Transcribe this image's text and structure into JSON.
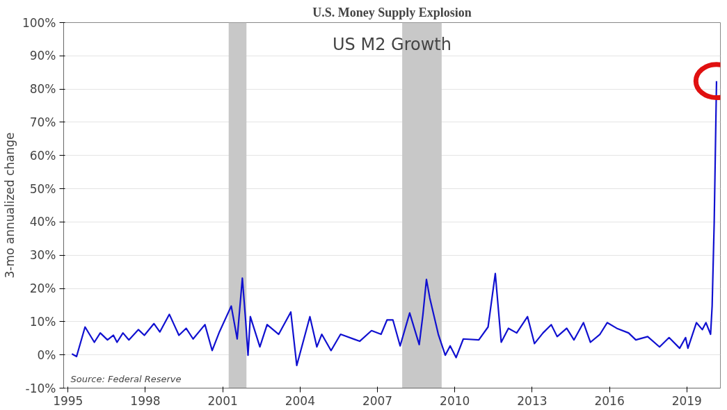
{
  "chart_data": {
    "type": "line",
    "title": "U.S. Money Supply Explosion",
    "ylabel": "3-mo annualized change",
    "annotations": [
      "US M2 Growth",
      "Source: Federal Reserve"
    ],
    "x": [
      1995.15,
      1995.33,
      1995.66,
      1996.02,
      1996.25,
      1996.53,
      1996.76,
      1996.9,
      1997.13,
      1997.36,
      1997.73,
      1997.96,
      1998.33,
      1998.56,
      1998.93,
      1999.3,
      1999.58,
      1999.85,
      2000.31,
      2000.59,
      2000.87,
      2001.33,
      2001.56,
      2001.76,
      2001.88,
      2001.98,
      2002.07,
      2002.44,
      2002.72,
      2003.17,
      2003.64,
      2003.87,
      2004.38,
      2004.65,
      2004.84,
      2005.2,
      2005.57,
      2006.31,
      2006.77,
      2007.14,
      2007.37,
      2007.6,
      2007.88,
      2008.25,
      2008.62,
      2008.76,
      2008.9,
      2009.03,
      2009.36,
      2009.63,
      2009.82,
      2010.05,
      2010.33,
      2010.93,
      2011.29,
      2011.57,
      2011.8,
      2012.08,
      2012.4,
      2012.82,
      2013.09,
      2013.42,
      2013.74,
      2013.97,
      2014.34,
      2014.62,
      2014.99,
      2015.26,
      2015.63,
      2015.91,
      2016.28,
      2016.74,
      2017.02,
      2017.48,
      2017.94,
      2018.31,
      2018.72,
      2018.95,
      2019.04,
      2019.37,
      2019.6,
      2019.74,
      2019.92,
      2019.98,
      2020.06,
      2020.15
    ],
    "series": [
      {
        "color": "#1010d0",
        "values": [
          0.3,
          -0.5,
          8.4,
          3.8,
          6.6,
          4.5,
          5.9,
          3.8,
          6.6,
          4.5,
          7.6,
          5.9,
          9.4,
          6.9,
          12.2,
          5.9,
          8.0,
          4.8,
          9.1,
          1.3,
          6.9,
          14.7,
          4.8,
          23.1,
          11.2,
          -0.1,
          11.5,
          2.4,
          9.1,
          6.2,
          12.9,
          -3.2,
          11.5,
          2.4,
          6.2,
          1.3,
          6.2,
          4.1,
          7.3,
          6.2,
          10.5,
          10.5,
          2.7,
          12.6,
          3.1,
          11.9,
          22.7,
          17.1,
          6.2,
          -0.1,
          2.7,
          -0.8,
          4.8,
          4.5,
          8.4,
          24.5,
          3.8,
          8.0,
          6.6,
          11.5,
          3.4,
          6.6,
          9.1,
          5.5,
          8.0,
          4.5,
          9.7,
          3.8,
          6.2,
          9.7,
          8.0,
          6.6,
          4.5,
          5.5,
          2.4,
          5.2,
          2.0,
          5.2,
          2.0,
          9.7,
          7.6,
          9.7,
          6.2,
          14.7,
          39.9,
          82.4
        ]
      }
    ],
    "xlim": [
      1994.83,
      2020.3
    ],
    "ylim": [
      -10,
      100
    ],
    "xticks": [
      1995,
      1998,
      2001,
      2004,
      2007,
      2010,
      2013,
      2016,
      2019
    ],
    "yticks": [
      {
        "value": -10,
        "label": "-10%"
      },
      {
        "value": 0,
        "label": "0%"
      },
      {
        "value": 10,
        "label": "10%"
      },
      {
        "value": 20,
        "label": "20%"
      },
      {
        "value": 30,
        "label": "30%"
      },
      {
        "value": 40,
        "label": "40%"
      },
      {
        "value": 50,
        "label": "50%"
      },
      {
        "value": 60,
        "label": "60%"
      },
      {
        "value": 70,
        "label": "70%"
      },
      {
        "value": 80,
        "label": "80%"
      },
      {
        "value": 90,
        "label": "90%"
      },
      {
        "value": 100,
        "label": "100%"
      }
    ],
    "bands": [
      {
        "axis": "x",
        "from": 2001.23,
        "to": 2001.92,
        "color": "#c8c8c8"
      },
      {
        "axis": "x",
        "from": 2007.96,
        "to": 2009.49,
        "color": "#c8c8c8"
      }
    ],
    "grid": "y"
  }
}
